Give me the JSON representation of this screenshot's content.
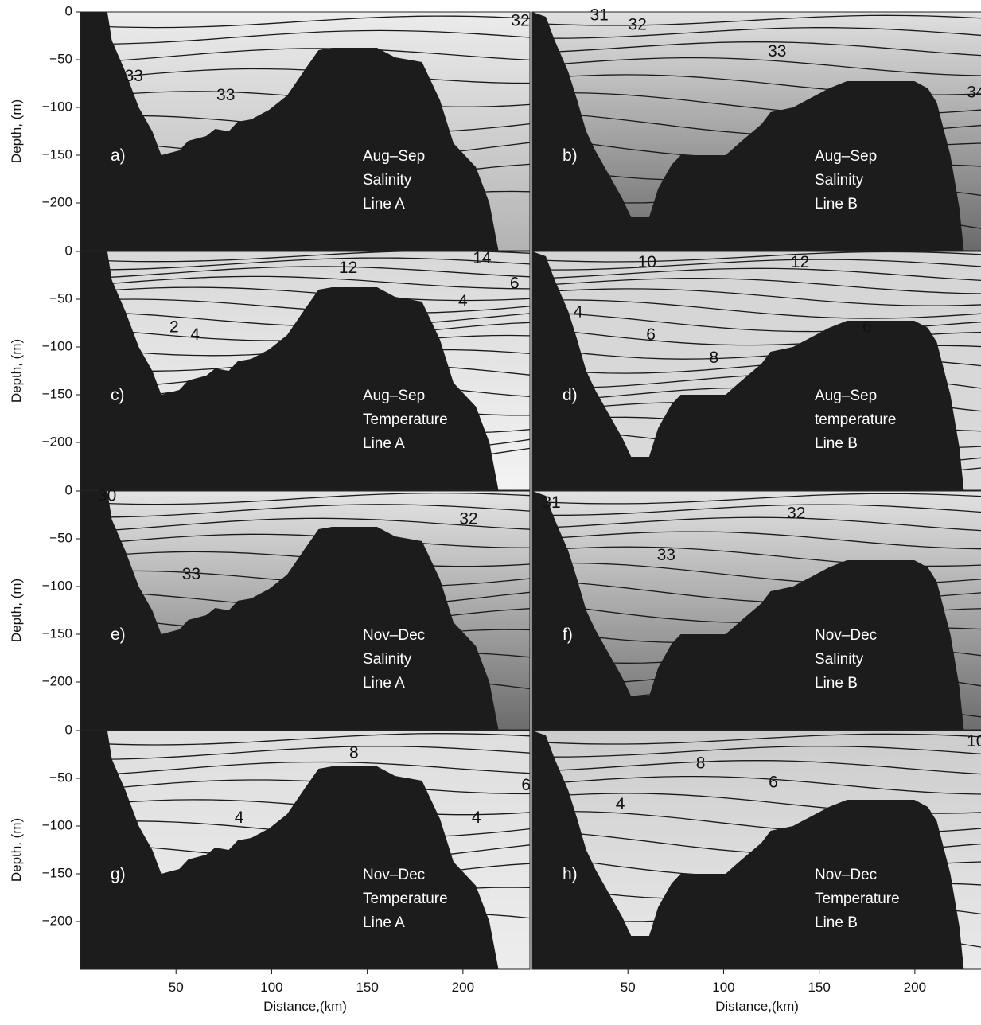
{
  "chart_data": {
    "type": "contour",
    "layout": "4 rows x 2 columns",
    "xlabel": "Distance,(km)",
    "ylabel": "Depth, (m)",
    "y_ticks": [
      0,
      -50,
      -100,
      -150,
      -200
    ],
    "y_tick_labels": [
      "0",
      "−50",
      "−100",
      "−150",
      "−200"
    ],
    "ylim": [
      -250,
      0
    ],
    "x_ticks": [
      50,
      100,
      150,
      200
    ],
    "x_tick_labels": [
      "50",
      "100",
      "150",
      "200"
    ],
    "xlim": [
      0,
      235
    ],
    "colors": {
      "bathymetry": "#1c1c1c",
      "contour_line": "#1a1a1a",
      "background": "#ffffff"
    },
    "panels": [
      {
        "id": "a",
        "label": "a)",
        "period": "Aug–Sep",
        "variable": "Salinity",
        "line": "Line A",
        "contour_labels": [
          {
            "text": "32",
            "x": 230,
            "y": -10
          },
          {
            "text": "33",
            "x": 28,
            "y": -68
          },
          {
            "text": "33",
            "x": 76,
            "y": -88
          }
        ]
      },
      {
        "id": "b",
        "label": "b)",
        "period": "Aug–Sep",
        "variable": "Salinity",
        "line": "Line B",
        "contour_labels": [
          {
            "text": "31",
            "x": 35,
            "y": -4
          },
          {
            "text": "32",
            "x": 55,
            "y": -14
          },
          {
            "text": "33",
            "x": 128,
            "y": -42
          },
          {
            "text": "34",
            "x": 232,
            "y": -85
          }
        ]
      },
      {
        "id": "c",
        "label": "c)",
        "period": "Aug–Sep",
        "variable": "Temperature",
        "line": "Line A",
        "contour_labels": [
          {
            "text": "12",
            "x": 140,
            "y": -18
          },
          {
            "text": "14",
            "x": 210,
            "y": -8
          },
          {
            "text": "6",
            "x": 227,
            "y": -34
          },
          {
            "text": "4",
            "x": 200,
            "y": -53
          },
          {
            "text": "2",
            "x": 49,
            "y": -80
          },
          {
            "text": "4",
            "x": 60,
            "y": -88
          }
        ]
      },
      {
        "id": "d",
        "label": "d)",
        "period": "Aug–Sep",
        "variable": "temperature",
        "line": "Line B",
        "contour_labels": [
          {
            "text": "10",
            "x": 60,
            "y": -12
          },
          {
            "text": "12",
            "x": 140,
            "y": -12
          },
          {
            "text": "4",
            "x": 24,
            "y": -64
          },
          {
            "text": "6",
            "x": 62,
            "y": -88
          },
          {
            "text": "6",
            "x": 175,
            "y": -80
          },
          {
            "text": "8",
            "x": 95,
            "y": -112
          }
        ]
      },
      {
        "id": "e",
        "label": "e)",
        "period": "Nov–Dec",
        "variable": "Salinity",
        "line": "Line A",
        "contour_labels": [
          {
            "text": "30",
            "x": 14,
            "y": -6
          },
          {
            "text": "32",
            "x": 203,
            "y": -30
          },
          {
            "text": "33",
            "x": 58,
            "y": -88
          }
        ]
      },
      {
        "id": "f",
        "label": "f)",
        "period": "Nov–Dec",
        "variable": "Salinity",
        "line": "Line B",
        "contour_labels": [
          {
            "text": "31",
            "x": 10,
            "y": -13
          },
          {
            "text": "32",
            "x": 138,
            "y": -24
          },
          {
            "text": "33",
            "x": 70,
            "y": -68
          }
        ]
      },
      {
        "id": "g",
        "label": "g)",
        "period": "Nov–Dec",
        "variable": "Temperature",
        "line": "Line A",
        "contour_labels": [
          {
            "text": "8",
            "x": 143,
            "y": -24
          },
          {
            "text": "6",
            "x": 233,
            "y": -58
          },
          {
            "text": "4",
            "x": 83,
            "y": -92
          },
          {
            "text": "4",
            "x": 207,
            "y": -92
          }
        ]
      },
      {
        "id": "h",
        "label": "h)",
        "period": "Nov–Dec",
        "variable": "Temperature",
        "line": "Line B",
        "contour_labels": [
          {
            "text": "10",
            "x": 232,
            "y": -12
          },
          {
            "text": "8",
            "x": 88,
            "y": -35
          },
          {
            "text": "6",
            "x": 126,
            "y": -55
          },
          {
            "text": "4",
            "x": 46,
            "y": -78
          }
        ]
      }
    ]
  }
}
